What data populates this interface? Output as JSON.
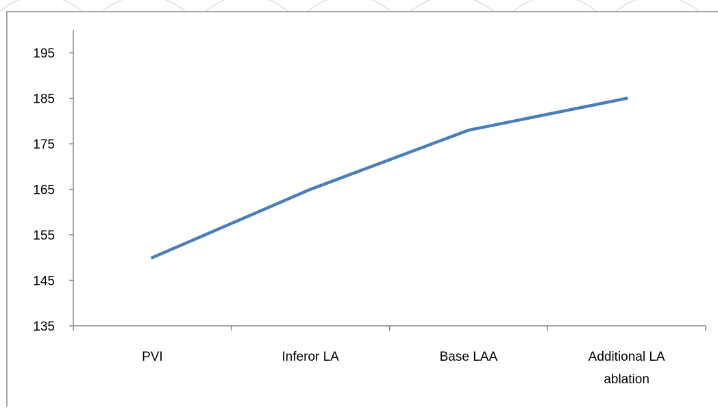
{
  "colors": {
    "line": "#4a7ebb",
    "axis": "#868686",
    "frame": "#868686",
    "watermark": "#e6e6e6"
  },
  "chart_data": {
    "type": "line",
    "categories": [
      "PVI",
      "Inferor LA",
      "Base LAA",
      "Additional LA ablation"
    ],
    "category_label_lines": [
      [
        "PVI"
      ],
      [
        "Inferor LA"
      ],
      [
        "Base LAA"
      ],
      [
        "Additional LA",
        "ablation"
      ]
    ],
    "series": [
      {
        "values": [
          150,
          165,
          178,
          185
        ]
      }
    ],
    "yticks": [
      135,
      145,
      155,
      165,
      175,
      185,
      195
    ],
    "ytick_labels": [
      "135",
      "145",
      "155",
      "165",
      "175",
      "185",
      "195"
    ],
    "ylim": [
      135,
      200
    ],
    "title": "",
    "xlabel": "",
    "ylabel": "",
    "grid": false,
    "legend": "none"
  }
}
